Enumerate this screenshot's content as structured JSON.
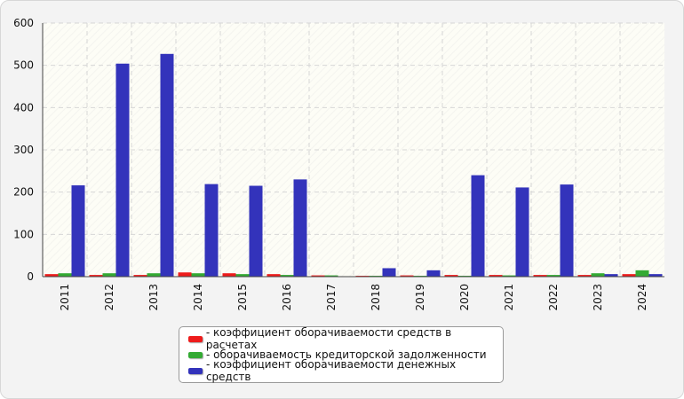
{
  "chart_data": {
    "type": "bar",
    "categories": [
      "2011",
      "2012",
      "2013",
      "2014",
      "2015",
      "2016",
      "2017",
      "2018",
      "2019",
      "2020",
      "2021",
      "2022",
      "2023",
      "2024"
    ],
    "series": [
      {
        "name": "- коэффициент оборачиваемости средств в расчетах",
        "color": "#ee1c1c",
        "values": [
          6,
          4,
          4,
          10,
          8,
          6,
          3,
          2,
          3,
          4,
          4,
          4,
          4,
          6
        ]
      },
      {
        "name": "- оборачиваемость кредиторской задолженности",
        "color": "#33aa33",
        "values": [
          8,
          8,
          8,
          8,
          6,
          4,
          3,
          2,
          2,
          2,
          3,
          4,
          8,
          15
        ]
      },
      {
        "name": "- коэффициент оборачиваемости денежных средств",
        "color": "#3333bb",
        "values": [
          216,
          504,
          527,
          219,
          215,
          230,
          0,
          20,
          15,
          240,
          211,
          218,
          6,
          6
        ]
      }
    ],
    "yticks": [
      0,
      100,
      200,
      300,
      400,
      500,
      600
    ],
    "ylim": [
      0,
      600
    ],
    "title": "",
    "xlabel": "",
    "ylabel": "",
    "grid": true,
    "legend_position": "bottom-center"
  }
}
